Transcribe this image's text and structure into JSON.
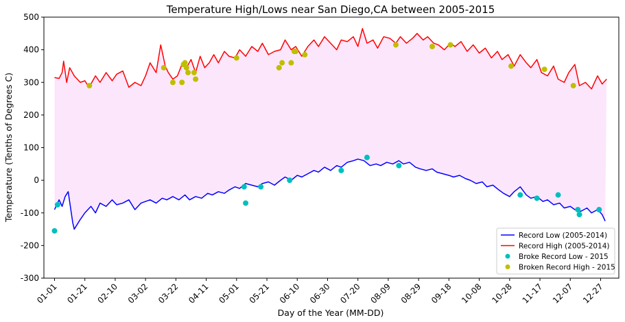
{
  "chart_data": {
    "type": "line",
    "title": "Temperature High/Lows near San Diego,CA between 2005-2015",
    "xlabel": "Day of the Year (MM-DD)",
    "ylabel": "Temperature (Tenths of Degrees C)",
    "xlim": [
      -7,
      372
    ],
    "ylim": [
      -300,
      500
    ],
    "yticks": [
      -300,
      -200,
      -100,
      0,
      100,
      200,
      300,
      400,
      500
    ],
    "xticks": [
      {
        "day": 0,
        "label": "01-01"
      },
      {
        "day": 20,
        "label": "01-21"
      },
      {
        "day": 40,
        "label": "02-10"
      },
      {
        "day": 60,
        "label": "03-02"
      },
      {
        "day": 80,
        "label": "03-22"
      },
      {
        "day": 100,
        "label": "04-11"
      },
      {
        "day": 120,
        "label": "05-01"
      },
      {
        "day": 140,
        "label": "05-21"
      },
      {
        "day": 160,
        "label": "06-10"
      },
      {
        "day": 180,
        "label": "06-30"
      },
      {
        "day": 200,
        "label": "07-20"
      },
      {
        "day": 220,
        "label": "08-09"
      },
      {
        "day": 240,
        "label": "08-29"
      },
      {
        "day": 260,
        "label": "09-18"
      },
      {
        "day": 280,
        "label": "10-08"
      },
      {
        "day": 300,
        "label": "10-28"
      },
      {
        "day": 320,
        "label": "11-17"
      },
      {
        "day": 340,
        "label": "12-07"
      },
      {
        "day": 360,
        "label": "12-27"
      }
    ],
    "fill_between": {
      "color": "#fce6fc",
      "between": [
        "Record Low (2005-2014)",
        "Record High (2005-2014)"
      ]
    },
    "series": [
      {
        "name": "Record Low (2005-2014)",
        "kind": "line",
        "color": "#0000ff",
        "points": [
          [
            0,
            -90
          ],
          [
            3,
            -60
          ],
          [
            5,
            -80
          ],
          [
            7,
            -50
          ],
          [
            9,
            -35
          ],
          [
            12,
            -130
          ],
          [
            13,
            -150
          ],
          [
            17,
            -120
          ],
          [
            20,
            -100
          ],
          [
            24,
            -80
          ],
          [
            27,
            -100
          ],
          [
            30,
            -70
          ],
          [
            34,
            -80
          ],
          [
            38,
            -60
          ],
          [
            41,
            -75
          ],
          [
            45,
            -70
          ],
          [
            49,
            -60
          ],
          [
            53,
            -90
          ],
          [
            57,
            -70
          ],
          [
            60,
            -65
          ],
          [
            63,
            -60
          ],
          [
            67,
            -70
          ],
          [
            71,
            -55
          ],
          [
            74,
            -60
          ],
          [
            78,
            -50
          ],
          [
            82,
            -60
          ],
          [
            86,
            -45
          ],
          [
            89,
            -60
          ],
          [
            93,
            -50
          ],
          [
            97,
            -55
          ],
          [
            101,
            -40
          ],
          [
            104,
            -45
          ],
          [
            108,
            -35
          ],
          [
            112,
            -40
          ],
          [
            115,
            -30
          ],
          [
            119,
            -20
          ],
          [
            122,
            -25
          ],
          [
            126,
            -10
          ],
          [
            130,
            -15
          ],
          [
            134,
            -20
          ],
          [
            137,
            -10
          ],
          [
            141,
            -5
          ],
          [
            145,
            -15
          ],
          [
            149,
            0
          ],
          [
            152,
            10
          ],
          [
            156,
            0
          ],
          [
            160,
            15
          ],
          [
            163,
            10
          ],
          [
            167,
            20
          ],
          [
            171,
            30
          ],
          [
            174,
            25
          ],
          [
            178,
            40
          ],
          [
            182,
            30
          ],
          [
            186,
            45
          ],
          [
            189,
            40
          ],
          [
            193,
            55
          ],
          [
            197,
            60
          ],
          [
            200,
            65
          ],
          [
            204,
            60
          ],
          [
            208,
            45
          ],
          [
            212,
            50
          ],
          [
            215,
            45
          ],
          [
            219,
            55
          ],
          [
            223,
            50
          ],
          [
            227,
            60
          ],
          [
            230,
            50
          ],
          [
            234,
            55
          ],
          [
            238,
            40
          ],
          [
            241,
            35
          ],
          [
            245,
            30
          ],
          [
            249,
            35
          ],
          [
            252,
            25
          ],
          [
            256,
            20
          ],
          [
            260,
            15
          ],
          [
            263,
            10
          ],
          [
            267,
            15
          ],
          [
            271,
            5
          ],
          [
            274,
            0
          ],
          [
            278,
            -10
          ],
          [
            282,
            -5
          ],
          [
            285,
            -20
          ],
          [
            289,
            -15
          ],
          [
            293,
            -30
          ],
          [
            296,
            -40
          ],
          [
            300,
            -50
          ],
          [
            303,
            -35
          ],
          [
            307,
            -20
          ],
          [
            311,
            -45
          ],
          [
            314,
            -55
          ],
          [
            318,
            -50
          ],
          [
            322,
            -65
          ],
          [
            325,
            -60
          ],
          [
            329,
            -75
          ],
          [
            333,
            -70
          ],
          [
            336,
            -85
          ],
          [
            340,
            -80
          ],
          [
            343,
            -90
          ],
          [
            347,
            -95
          ],
          [
            351,
            -85
          ],
          [
            354,
            -100
          ],
          [
            358,
            -90
          ],
          [
            361,
            -105
          ],
          [
            363,
            -125
          ]
        ]
      },
      {
        "name": "Record High (2005-2014)",
        "kind": "line",
        "color": "#ff0000",
        "points": [
          [
            0,
            315
          ],
          [
            3,
            312
          ],
          [
            5,
            330
          ],
          [
            6,
            365
          ],
          [
            8,
            300
          ],
          [
            10,
            345
          ],
          [
            13,
            320
          ],
          [
            17,
            300
          ],
          [
            20,
            305
          ],
          [
            22,
            290
          ],
          [
            24,
            295
          ],
          [
            27,
            320
          ],
          [
            30,
            300
          ],
          [
            34,
            330
          ],
          [
            38,
            305
          ],
          [
            41,
            325
          ],
          [
            45,
            335
          ],
          [
            49,
            285
          ],
          [
            53,
            300
          ],
          [
            57,
            290
          ],
          [
            60,
            320
          ],
          [
            63,
            360
          ],
          [
            67,
            330
          ],
          [
            70,
            415
          ],
          [
            73,
            350
          ],
          [
            75,
            330
          ],
          [
            78,
            310
          ],
          [
            81,
            320
          ],
          [
            84,
            355
          ],
          [
            87,
            345
          ],
          [
            90,
            370
          ],
          [
            93,
            330
          ],
          [
            96,
            380
          ],
          [
            99,
            345
          ],
          [
            102,
            360
          ],
          [
            105,
            385
          ],
          [
            108,
            360
          ],
          [
            112,
            395
          ],
          [
            115,
            380
          ],
          [
            119,
            375
          ],
          [
            122,
            400
          ],
          [
            126,
            380
          ],
          [
            130,
            410
          ],
          [
            134,
            395
          ],
          [
            137,
            420
          ],
          [
            141,
            385
          ],
          [
            145,
            395
          ],
          [
            149,
            400
          ],
          [
            152,
            430
          ],
          [
            156,
            400
          ],
          [
            159,
            410
          ],
          [
            163,
            380
          ],
          [
            167,
            410
          ],
          [
            171,
            430
          ],
          [
            174,
            410
          ],
          [
            178,
            440
          ],
          [
            182,
            420
          ],
          [
            186,
            400
          ],
          [
            189,
            430
          ],
          [
            193,
            425
          ],
          [
            197,
            440
          ],
          [
            200,
            410
          ],
          [
            203,
            465
          ],
          [
            206,
            420
          ],
          [
            210,
            430
          ],
          [
            213,
            405
          ],
          [
            217,
            440
          ],
          [
            221,
            435
          ],
          [
            225,
            420
          ],
          [
            228,
            440
          ],
          [
            232,
            420
          ],
          [
            236,
            435
          ],
          [
            239,
            450
          ],
          [
            243,
            430
          ],
          [
            246,
            440
          ],
          [
            250,
            420
          ],
          [
            253,
            415
          ],
          [
            257,
            400
          ],
          [
            261,
            420
          ],
          [
            264,
            410
          ],
          [
            268,
            425
          ],
          [
            272,
            395
          ],
          [
            276,
            415
          ],
          [
            280,
            390
          ],
          [
            284,
            405
          ],
          [
            288,
            375
          ],
          [
            292,
            395
          ],
          [
            295,
            370
          ],
          [
            299,
            385
          ],
          [
            303,
            350
          ],
          [
            307,
            385
          ],
          [
            311,
            360
          ],
          [
            314,
            345
          ],
          [
            318,
            370
          ],
          [
            321,
            330
          ],
          [
            325,
            320
          ],
          [
            329,
            350
          ],
          [
            332,
            310
          ],
          [
            336,
            300
          ],
          [
            339,
            330
          ],
          [
            343,
            355
          ],
          [
            346,
            290
          ],
          [
            350,
            300
          ],
          [
            354,
            280
          ],
          [
            358,
            320
          ],
          [
            361,
            295
          ],
          [
            364,
            310
          ]
        ]
      },
      {
        "name": "Broke Record Low - 2015",
        "kind": "scatter",
        "color": "#00bfbf",
        "points": [
          [
            0,
            -155
          ],
          [
            2,
            -75
          ],
          [
            125,
            -20
          ],
          [
            126,
            -70
          ],
          [
            136,
            -20
          ],
          [
            155,
            0
          ],
          [
            189,
            30
          ],
          [
            206,
            70
          ],
          [
            227,
            45
          ],
          [
            307,
            -45
          ],
          [
            318,
            -55
          ],
          [
            332,
            -45
          ],
          [
            345,
            -90
          ],
          [
            346,
            -105
          ],
          [
            359,
            -90
          ]
        ]
      },
      {
        "name": "Broken Record High - 2015",
        "kind": "scatter",
        "color": "#bfbf00",
        "points": [
          [
            23,
            290
          ],
          [
            72,
            345
          ],
          [
            78,
            300
          ],
          [
            84,
            300
          ],
          [
            85,
            355
          ],
          [
            86,
            360
          ],
          [
            87,
            345
          ],
          [
            88,
            330
          ],
          [
            92,
            330
          ],
          [
            93,
            310
          ],
          [
            120,
            375
          ],
          [
            148,
            345
          ],
          [
            150,
            360
          ],
          [
            156,
            360
          ],
          [
            158,
            395
          ],
          [
            159,
            395
          ],
          [
            165,
            385
          ],
          [
            225,
            415
          ],
          [
            249,
            410
          ],
          [
            261,
            415
          ],
          [
            301,
            350
          ],
          [
            323,
            340
          ],
          [
            342,
            290
          ]
        ]
      }
    ],
    "legend": {
      "position": "lower right",
      "entries": [
        {
          "label": "Record Low (2005-2014)",
          "marker": "line",
          "color": "#0000ff"
        },
        {
          "label": "Record High (2005-2014)",
          "marker": "line",
          "color": "#ff0000"
        },
        {
          "label": "Broke Record Low - 2015",
          "marker": "dot",
          "color": "#00bfbf"
        },
        {
          "label": "Broken Record High - 2015",
          "marker": "dot",
          "color": "#bfbf00"
        }
      ]
    }
  }
}
